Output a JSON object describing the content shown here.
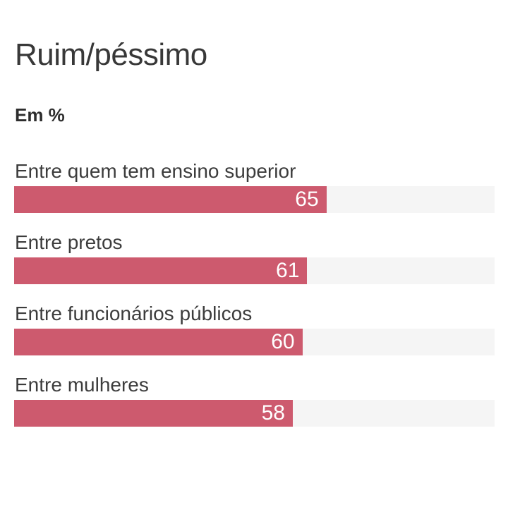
{
  "chart_data": {
    "type": "bar",
    "orientation": "horizontal",
    "title": "Ruim/péssimo",
    "subtitle": "Em %",
    "categories": [
      "Entre quem tem ensino superior",
      "Entre pretos",
      "Entre funcionários públicos",
      "Entre mulheres"
    ],
    "values": [
      65,
      61,
      60,
      58
    ],
    "xlim": [
      0,
      100
    ],
    "grid": false,
    "legend": "none",
    "value_label_position": "inside-end",
    "colors": {
      "bar_fill": "#cd5a6e",
      "bar_track": "#f5f5f5",
      "value_label": "#ffffff",
      "title_text": "#383838",
      "subtitle_text": "#2d2d2d",
      "category_text": "#3c3c3c",
      "background": "#ffffff"
    }
  }
}
